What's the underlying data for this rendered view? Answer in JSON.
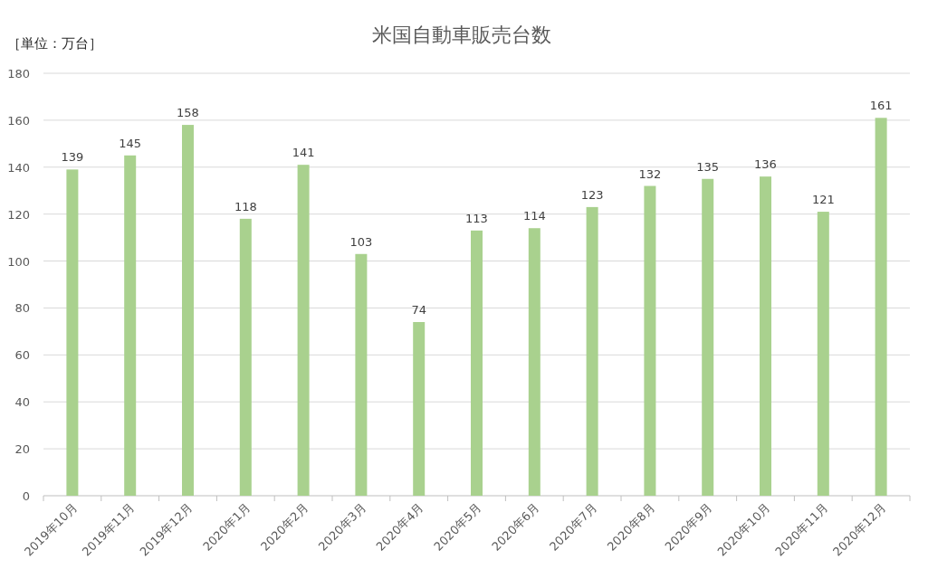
{
  "chart_data": {
    "type": "bar",
    "title": "米国自動車販売台数",
    "annotations": [
      "［単位：万台］"
    ],
    "categories": [
      "2019年10月",
      "2019年11月",
      "2019年12月",
      "2020年1月",
      "2020年2月",
      "2020年3月",
      "2020年4月",
      "2020年5月",
      "2020年6月",
      "2020年7月",
      "2020年8月",
      "2020年9月",
      "2020年10月",
      "2020年11月",
      "2020年12月"
    ],
    "values": [
      139,
      145,
      158,
      118,
      141,
      103,
      74,
      113,
      114,
      123,
      132,
      135,
      136,
      121,
      161
    ],
    "color": "#a9d18e",
    "ylim": [
      0,
      180
    ],
    "yticks": [
      0,
      20,
      40,
      60,
      80,
      100,
      120,
      140,
      160,
      180
    ],
    "grid": "y",
    "data_labels": true
  }
}
